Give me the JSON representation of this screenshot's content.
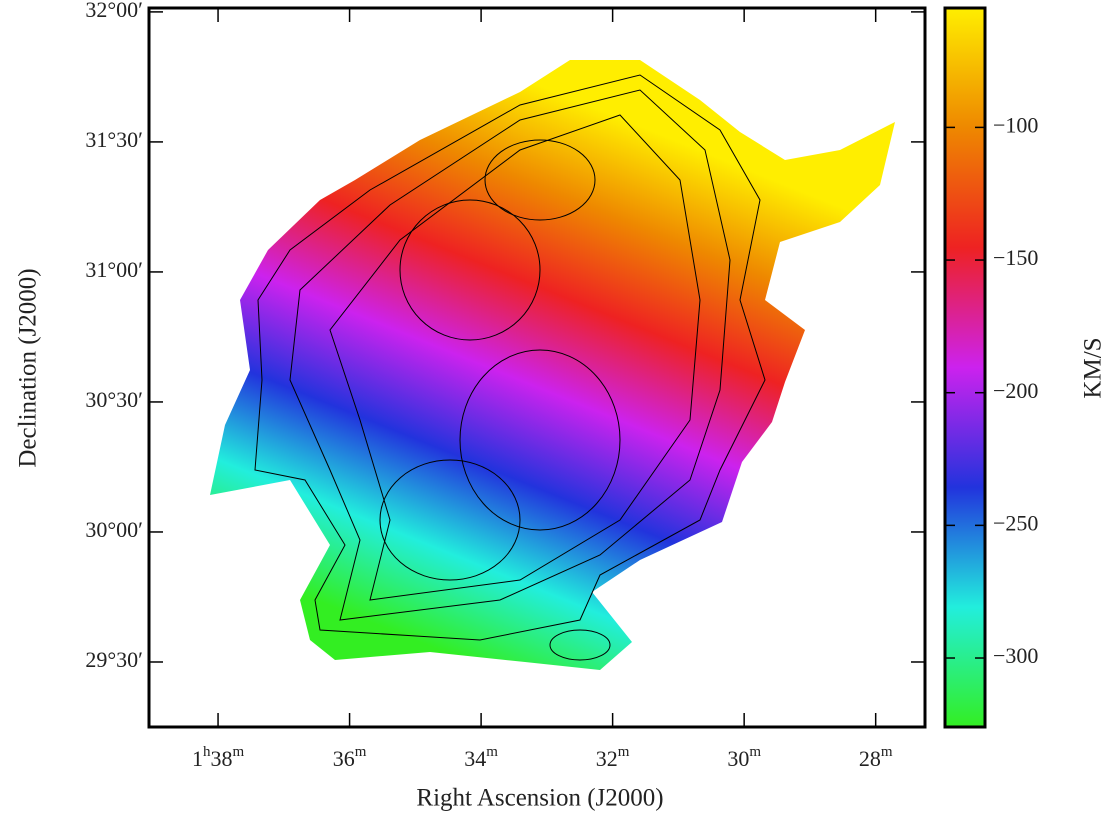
{
  "chart_data": {
    "type": "image",
    "x_label": "Right Ascension (J2000)",
    "y_label": "Declination (J2000)",
    "colorbar_label": "KM/S",
    "xlim": [
      39.05,
      27.25
    ],
    "xticks": [
      {
        "value": 38,
        "label": "1h38m"
      },
      {
        "value": 36,
        "label": "36m"
      },
      {
        "value": 34,
        "label": "34m"
      },
      {
        "value": 32,
        "label": "32m"
      },
      {
        "value": 30,
        "label": "30m"
      },
      {
        "value": 28,
        "label": "28m"
      }
    ],
    "ylim": [
      29.25,
      32.015
    ],
    "yticks": [
      {
        "value": 29.5,
        "label": "29°30′"
      },
      {
        "value": 30,
        "label": "30°00′"
      },
      {
        "value": 30.5,
        "label": "30°30′"
      },
      {
        "value": 31,
        "label": "31°00′"
      },
      {
        "value": 31.5,
        "label": "31°30′"
      },
      {
        "value": 32,
        "label": "32°00′"
      }
    ],
    "clim": [
      -326,
      -55
    ],
    "cticks": [
      {
        "value": -300,
        "label": "−300"
      },
      {
        "value": -250,
        "label": "−250"
      },
      {
        "value": -200,
        "label": "−200"
      },
      {
        "value": -150,
        "label": "−150"
      },
      {
        "value": -100,
        "label": "−100"
      }
    ],
    "colormap": [
      "#33ee22",
      "#22eedd",
      "#2233dd",
      "#cc22ee",
      "#ee2222",
      "#ee8800",
      "#ffee00"
    ]
  }
}
